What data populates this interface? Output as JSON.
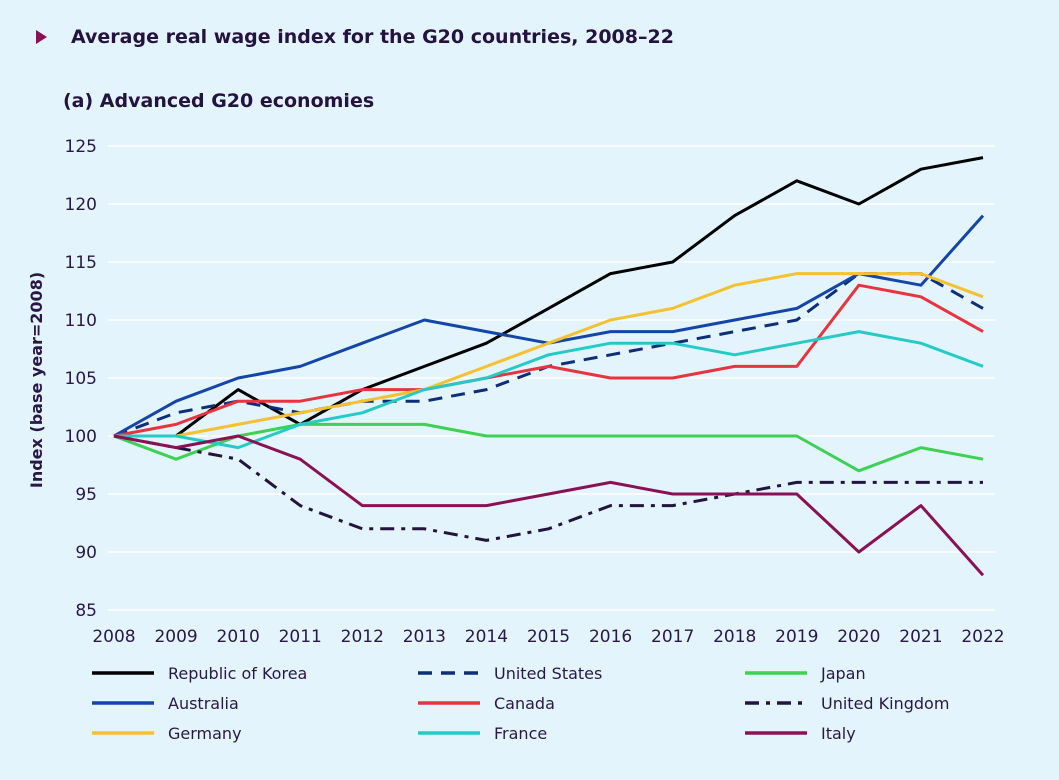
{
  "header": {
    "title": "Average real wage index for the G20 countries, 2008–22",
    "subtitle": "(a) Advanced G20 economies"
  },
  "chart_data": {
    "type": "line",
    "title": "Average real wage index for the G20 countries, 2008–22",
    "subtitle": "(a) Advanced G20 economies",
    "xlabel": "",
    "ylabel": "Index (base year=2008)",
    "x": [
      2008,
      2009,
      2010,
      2011,
      2012,
      2013,
      2014,
      2015,
      2016,
      2017,
      2018,
      2019,
      2020,
      2021,
      2022
    ],
    "x_tick_labels": [
      "2008",
      "2009",
      "2010",
      "2011",
      "2012",
      "2013",
      "2014",
      "2015",
      "2016",
      "2017",
      "2018",
      "2019",
      "2020",
      "2021",
      "2022"
    ],
    "y_ticks": [
      85,
      90,
      95,
      100,
      105,
      110,
      115,
      120,
      125
    ],
    "y_tick_labels": [
      "85",
      "90",
      "95",
      "100",
      "105",
      "110",
      "115",
      "120",
      "125"
    ],
    "ylim": [
      85,
      125
    ],
    "grid": "horizontal",
    "legend_position": "bottom",
    "series": [
      {
        "name": "Republic of Korea",
        "color": "#000000",
        "dash": "solid",
        "values": [
          100,
          100,
          104,
          101,
          104,
          106,
          108,
          111,
          114,
          115,
          119,
          122,
          120,
          123,
          124
        ]
      },
      {
        "name": "United States",
        "color": "#0d2f7a",
        "dash": "dashed",
        "values": [
          100,
          102,
          103,
          102,
          103,
          103,
          104,
          106,
          107,
          108,
          109,
          110,
          114,
          114,
          111
        ]
      },
      {
        "name": "Japan",
        "color": "#3ed154",
        "dash": "solid",
        "values": [
          100,
          98,
          100,
          101,
          101,
          101,
          100,
          100,
          100,
          100,
          100,
          100,
          97,
          99,
          98
        ]
      },
      {
        "name": "Australia",
        "color": "#1346a8",
        "dash": "solid",
        "values": [
          100,
          103,
          105,
          106,
          108,
          110,
          109,
          108,
          109,
          109,
          110,
          111,
          114,
          113,
          119
        ]
      },
      {
        "name": "Canada",
        "color": "#e8343f",
        "dash": "solid",
        "values": [
          100,
          101,
          103,
          103,
          104,
          104,
          105,
          106,
          105,
          105,
          106,
          106,
          113,
          112,
          109
        ]
      },
      {
        "name": "United Kingdom",
        "color": "#24123f",
        "dash": "dashdot",
        "values": [
          100,
          99,
          98,
          94,
          92,
          92,
          91,
          92,
          94,
          94,
          95,
          96,
          96,
          96,
          96
        ]
      },
      {
        "name": "Germany",
        "color": "#f5c12e",
        "dash": "solid",
        "values": [
          100,
          100,
          101,
          102,
          103,
          104,
          106,
          108,
          110,
          111,
          113,
          114,
          114,
          114,
          112
        ]
      },
      {
        "name": "France",
        "color": "#24cbc6",
        "dash": "solid",
        "values": [
          100,
          100,
          99,
          101,
          102,
          104,
          105,
          107,
          108,
          108,
          107,
          108,
          109,
          108,
          106
        ]
      },
      {
        "name": "Italy",
        "color": "#8b1156",
        "dash": "solid",
        "values": [
          100,
          99,
          100,
          98,
          94,
          94,
          94,
          95,
          96,
          95,
          95,
          95,
          90,
          94,
          88
        ]
      }
    ]
  }
}
